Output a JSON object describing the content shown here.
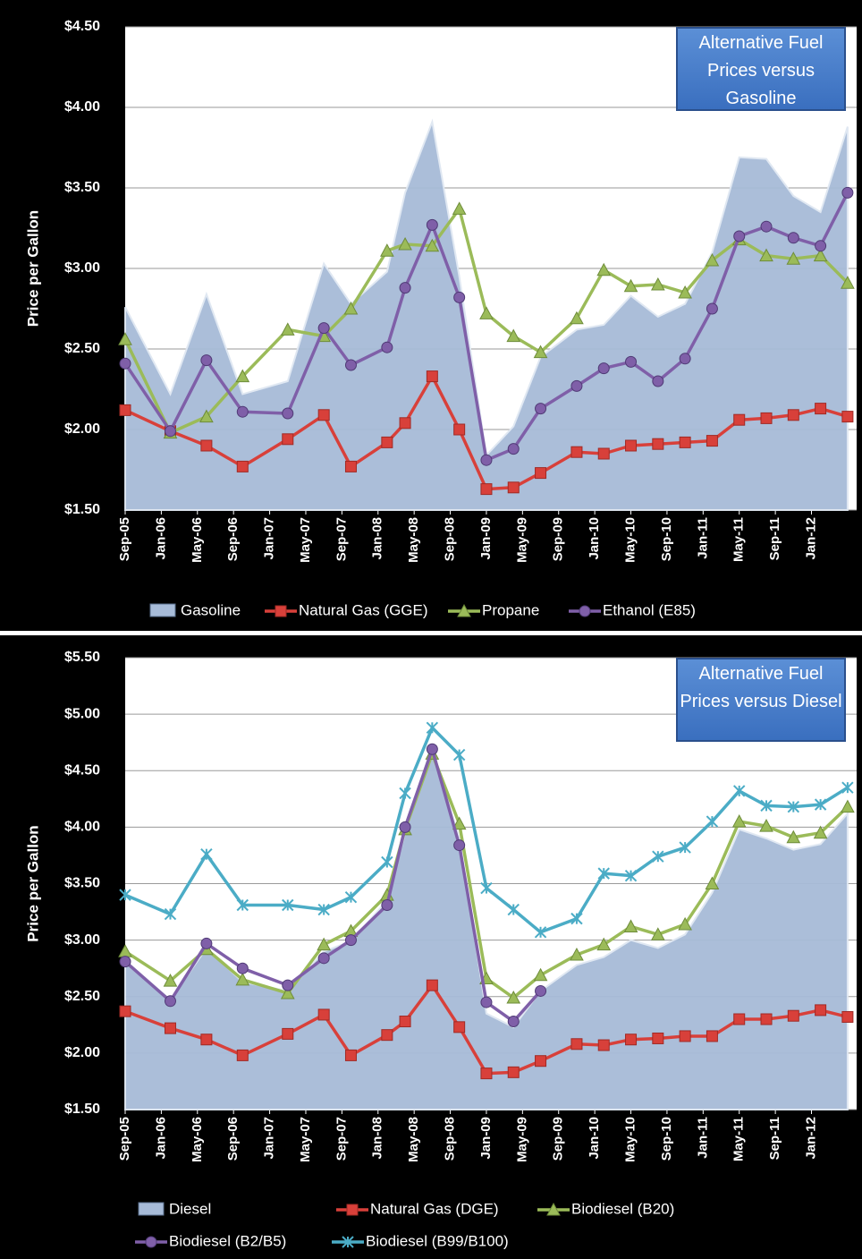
{
  "chart_data": [
    {
      "type": "line",
      "title": "Alternative Fuel Prices versus Gasoline",
      "y_label": "Price per Gallon",
      "x": [
        "2005-09",
        "2006-02",
        "2006-06",
        "2006-10",
        "2007-03",
        "2007-07",
        "2007-10",
        "2008-02",
        "2008-04",
        "2008-07",
        "2008-10",
        "2009-01",
        "2009-04",
        "2009-07",
        "2009-11",
        "2010-02",
        "2010-05",
        "2010-08",
        "2010-11",
        "2011-02",
        "2011-05",
        "2011-08",
        "2011-11",
        "2012-02",
        "2012-05"
      ],
      "xlim": [
        "2005-09",
        "2012-06"
      ],
      "xticks": [
        {
          "value": "2005-09",
          "label": "Sep-05"
        },
        {
          "value": "2006-01",
          "label": "Jan-06"
        },
        {
          "value": "2006-05",
          "label": "May-06"
        },
        {
          "value": "2006-09",
          "label": "Sep-06"
        },
        {
          "value": "2007-01",
          "label": "Jan-07"
        },
        {
          "value": "2007-05",
          "label": "May-07"
        },
        {
          "value": "2007-09",
          "label": "Sep-07"
        },
        {
          "value": "2008-01",
          "label": "Jan-08"
        },
        {
          "value": "2008-05",
          "label": "May-08"
        },
        {
          "value": "2008-09",
          "label": "Sep-08"
        },
        {
          "value": "2009-01",
          "label": "Jan-09"
        },
        {
          "value": "2009-05",
          "label": "May-09"
        },
        {
          "value": "2009-09",
          "label": "Sep-09"
        },
        {
          "value": "2010-01",
          "label": "Jan-10"
        },
        {
          "value": "2010-05",
          "label": "May-10"
        },
        {
          "value": "2010-09",
          "label": "Sep-10"
        },
        {
          "value": "2011-01",
          "label": "Jan-11"
        },
        {
          "value": "2011-05",
          "label": "May-11"
        },
        {
          "value": "2011-09",
          "label": "Sep-11"
        },
        {
          "value": "2012-01",
          "label": "Jan-12"
        }
      ],
      "ylim": [
        1.5,
        4.5
      ],
      "yticks": [
        {
          "value": 1.5,
          "label": "$1.50"
        },
        {
          "value": 2,
          "label": "$2.00"
        },
        {
          "value": 2.5,
          "label": "$2.50"
        },
        {
          "value": 3,
          "label": "$3.00"
        },
        {
          "value": 3.5,
          "label": "$3.50"
        },
        {
          "value": 4,
          "label": "$4.00"
        },
        {
          "value": 4.5,
          "label": "$4.50"
        }
      ],
      "grid": true,
      "series": [
        {
          "name": "Gasoline",
          "type": "area",
          "color": "#a7bbd8",
          "values": [
            2.76,
            2.22,
            2.84,
            2.22,
            2.3,
            3.03,
            2.78,
            2.98,
            3.47,
            3.91,
            2.95,
            1.84,
            2.02,
            2.45,
            2.62,
            2.65,
            2.83,
            2.7,
            2.78,
            3.1,
            3.69,
            3.68,
            3.45,
            3.35,
            3.88
          ]
        },
        {
          "name": "Natural Gas (GGE)",
          "marker": "square",
          "color": "#d8403a",
          "values": [
            2.12,
            1.99,
            1.9,
            1.77,
            1.94,
            2.09,
            1.77,
            1.92,
            2.04,
            2.33,
            2.0,
            1.63,
            1.64,
            1.73,
            1.86,
            1.85,
            1.9,
            1.91,
            1.92,
            1.93,
            2.06,
            2.07,
            2.09,
            2.13,
            2.08
          ]
        },
        {
          "name": "Propane",
          "marker": "triangle",
          "color": "#9bbb59",
          "values": [
            2.56,
            1.98,
            2.08,
            2.33,
            2.62,
            2.58,
            2.75,
            3.11,
            3.15,
            3.14,
            3.37,
            2.72,
            2.58,
            2.48,
            2.69,
            2.99,
            2.89,
            2.9,
            2.85,
            3.05,
            3.18,
            3.08,
            3.06,
            3.08,
            2.91
          ]
        },
        {
          "name": "Ethanol (E85)",
          "marker": "circle",
          "color": "#7f5fa8",
          "values": [
            2.41,
            1.99,
            2.43,
            2.11,
            2.1,
            2.63,
            2.4,
            2.51,
            2.88,
            3.27,
            2.82,
            1.81,
            1.88,
            2.13,
            2.27,
            2.38,
            2.42,
            2.3,
            2.44,
            2.75,
            3.2,
            3.26,
            3.19,
            3.14,
            3.47
          ]
        }
      ]
    },
    {
      "type": "line",
      "title": "Alternative Fuel Prices versus Diesel",
      "y_label": "Price per Gallon",
      "x": [
        "2005-09",
        "2006-02",
        "2006-06",
        "2006-10",
        "2007-03",
        "2007-07",
        "2007-10",
        "2008-02",
        "2008-04",
        "2008-07",
        "2008-10",
        "2009-01",
        "2009-04",
        "2009-07",
        "2009-11",
        "2010-02",
        "2010-05",
        "2010-08",
        "2010-11",
        "2011-02",
        "2011-05",
        "2011-08",
        "2011-11",
        "2012-02",
        "2012-05"
      ],
      "xlim": [
        "2005-09",
        "2012-06"
      ],
      "xticks": [
        {
          "value": "2005-09",
          "label": "Sep-05"
        },
        {
          "value": "2006-01",
          "label": "Jan-06"
        },
        {
          "value": "2006-05",
          "label": "May-06"
        },
        {
          "value": "2006-09",
          "label": "Sep-06"
        },
        {
          "value": "2007-01",
          "label": "Jan-07"
        },
        {
          "value": "2007-05",
          "label": "May-07"
        },
        {
          "value": "2007-09",
          "label": "Sep-07"
        },
        {
          "value": "2008-01",
          "label": "Jan-08"
        },
        {
          "value": "2008-05",
          "label": "May-08"
        },
        {
          "value": "2008-09",
          "label": "Sep-08"
        },
        {
          "value": "2009-01",
          "label": "Jan-09"
        },
        {
          "value": "2009-05",
          "label": "May-09"
        },
        {
          "value": "2009-09",
          "label": "Sep-09"
        },
        {
          "value": "2010-01",
          "label": "Jan-10"
        },
        {
          "value": "2010-05",
          "label": "May-10"
        },
        {
          "value": "2010-09",
          "label": "Sep-10"
        },
        {
          "value": "2011-01",
          "label": "Jan-11"
        },
        {
          "value": "2011-05",
          "label": "May-11"
        },
        {
          "value": "2011-09",
          "label": "Sep-11"
        },
        {
          "value": "2012-01",
          "label": "Jan-12"
        }
      ],
      "ylim": [
        1.5,
        5.5
      ],
      "yticks": [
        {
          "value": 1.5,
          "label": "$1.50"
        },
        {
          "value": 2,
          "label": "$2.00"
        },
        {
          "value": 2.5,
          "label": "$2.50"
        },
        {
          "value": 3,
          "label": "$3.00"
        },
        {
          "value": 3.5,
          "label": "$3.50"
        },
        {
          "value": 4,
          "label": "$4.00"
        },
        {
          "value": 4.5,
          "label": "$4.50"
        },
        {
          "value": 5,
          "label": "$5.00"
        },
        {
          "value": 5.5,
          "label": "$5.50"
        }
      ],
      "grid": true,
      "series": [
        {
          "name": "Diesel",
          "type": "area",
          "color": "#a7bbd8",
          "values": [
            2.82,
            2.47,
            2.93,
            2.63,
            2.55,
            2.9,
            2.99,
            3.35,
            3.95,
            4.69,
            3.9,
            2.35,
            2.23,
            2.55,
            2.78,
            2.85,
            3.0,
            2.93,
            3.05,
            3.42,
            3.98,
            3.9,
            3.8,
            3.85,
            4.12
          ]
        },
        {
          "name": "Natural Gas (DGE)",
          "marker": "square",
          "color": "#d8403a",
          "values": [
            2.37,
            2.22,
            2.12,
            1.98,
            2.17,
            2.34,
            1.98,
            2.16,
            2.28,
            2.6,
            2.23,
            1.82,
            1.83,
            1.93,
            2.08,
            2.07,
            2.12,
            2.13,
            2.15,
            2.15,
            2.3,
            2.3,
            2.33,
            2.38,
            2.32
          ]
        },
        {
          "name": "Biodiesel (B20)",
          "marker": "triangle",
          "color": "#9bbb59",
          "values": [
            2.9,
            2.64,
            2.92,
            2.65,
            2.53,
            2.96,
            3.08,
            3.4,
            3.98,
            4.65,
            4.03,
            2.66,
            2.49,
            2.69,
            2.87,
            2.96,
            3.12,
            3.05,
            3.14,
            3.5,
            4.05,
            4.01,
            3.91,
            3.95,
            4.18
          ]
        },
        {
          "name": "Biodiesel (B2/B5)",
          "marker": "circle",
          "color": "#7f5fa8",
          "values": [
            2.81,
            2.46,
            2.97,
            2.75,
            2.6,
            2.84,
            3.0,
            3.31,
            4.0,
            4.69,
            3.84,
            2.45,
            2.28,
            2.55,
            null,
            null,
            null,
            null,
            null,
            null,
            null,
            null,
            null,
            null,
            null
          ]
        },
        {
          "name": "Biodiesel (B99/B100)",
          "marker": "star",
          "color": "#4bacc6",
          "values": [
            3.4,
            3.23,
            3.76,
            3.31,
            3.31,
            3.27,
            3.38,
            3.69,
            4.3,
            4.88,
            4.64,
            3.46,
            3.27,
            3.07,
            3.19,
            3.59,
            3.57,
            3.74,
            3.82,
            4.05,
            4.32,
            4.19,
            4.18,
            4.2,
            4.35
          ]
        }
      ]
    }
  ]
}
